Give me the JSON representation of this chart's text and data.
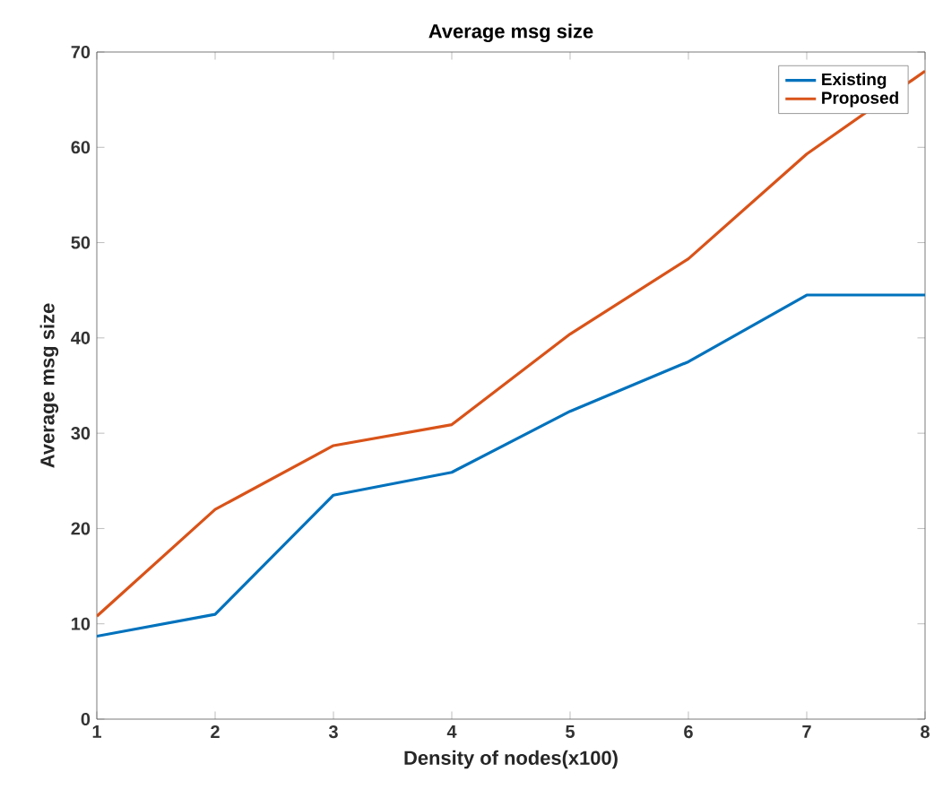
{
  "chart_data": {
    "type": "line",
    "title": "Average msg size",
    "xlabel": "Density of nodes(x100)",
    "ylabel": "Average msg size",
    "x": [
      1,
      2,
      3,
      4,
      5,
      6,
      7,
      8
    ],
    "series": [
      {
        "name": "Existing",
        "color": "#0072bd",
        "values": [
          8.7,
          11,
          23.5,
          25.9,
          32.3,
          37.5,
          44.5,
          44.5
        ]
      },
      {
        "name": "Proposed",
        "color": "#d95319",
        "values": [
          10.8,
          22,
          28.7,
          30.9,
          40.4,
          48.3,
          59.3,
          68
        ]
      }
    ],
    "xlim": [
      1,
      8
    ],
    "xticks": [
      1,
      2,
      3,
      4,
      5,
      6,
      7,
      8
    ],
    "ylim": [
      0,
      70
    ],
    "yticks": [
      0,
      10,
      20,
      30,
      40,
      50,
      60,
      70
    ],
    "legend": "top right",
    "grid": false,
    "marker": "none",
    "line_style": "solid"
  }
}
